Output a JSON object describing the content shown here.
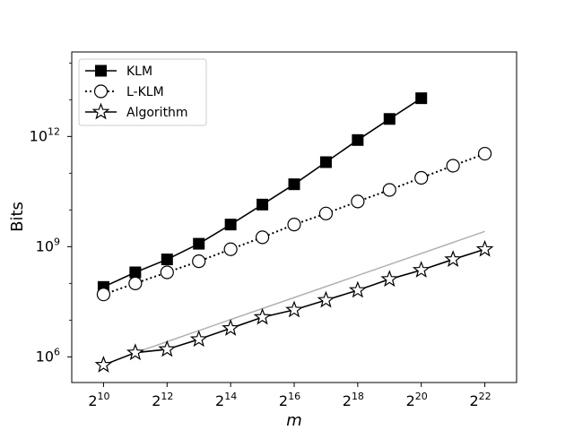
{
  "chart_data": {
    "type": "line",
    "title": "",
    "xlabel": "m",
    "ylabel": "Bits",
    "x_scale": "log2",
    "y_scale": "log10",
    "xlim": [
      512,
      8388608
    ],
    "ylim": [
      200000,
      200000000000000
    ],
    "x_ticks": [
      {
        "value": 1024,
        "base": "2",
        "exp": "10"
      },
      {
        "value": 4096,
        "base": "2",
        "exp": "12"
      },
      {
        "value": 16384,
        "base": "2",
        "exp": "14"
      },
      {
        "value": 65536,
        "base": "2",
        "exp": "16"
      },
      {
        "value": 262144,
        "base": "2",
        "exp": "18"
      },
      {
        "value": 1048576,
        "base": "2",
        "exp": "20"
      },
      {
        "value": 4194304,
        "base": "2",
        "exp": "22"
      }
    ],
    "y_ticks": [
      {
        "value": 1000000,
        "base": "10",
        "exp": "6"
      },
      {
        "value": 1000000000,
        "base": "10",
        "exp": "9"
      },
      {
        "value": 1000000000000,
        "base": "10",
        "exp": "12"
      }
    ],
    "grid": false,
    "legend_position": "top-left",
    "series": [
      {
        "name": "KLM",
        "marker": "square",
        "line": "solid",
        "color": "#000000",
        "x": [
          1024,
          2048,
          4096,
          8192,
          16384,
          32768,
          65536,
          131072,
          262144,
          524288,
          1048576
        ],
        "y": [
          80000000,
          200000000,
          450000000,
          1200000000,
          4000000000,
          14000000000,
          50000000000,
          200000000000,
          800000000000,
          3000000000000,
          11000000000000
        ]
      },
      {
        "name": "L-KLM",
        "marker": "circle-open",
        "line": "dotted",
        "color": "#000000",
        "x": [
          1024,
          2048,
          4096,
          8192,
          16384,
          32768,
          65536,
          131072,
          262144,
          524288,
          1048576,
          2097152,
          4194304
        ],
        "y": [
          50000000,
          100000000,
          200000000,
          400000000,
          850000000,
          1800000000,
          4000000000,
          8000000000,
          17000000000,
          35000000000,
          75000000000,
          160000000000,
          340000000000
        ]
      },
      {
        "name": "Algorithm",
        "marker": "star-open",
        "line": "solid",
        "color": "#000000",
        "x": [
          1024,
          2048,
          4096,
          8192,
          16384,
          32768,
          65536,
          131072,
          262144,
          524288,
          1048576,
          2097152,
          4194304
        ],
        "y": [
          600000,
          1300000,
          1600000,
          3000000,
          6000000,
          12000000,
          19000000,
          35000000,
          65000000,
          130000000,
          230000000,
          450000000,
          850000000
        ]
      },
      {
        "name": "",
        "marker": "none",
        "line": "solid",
        "color": "#b0b0b0",
        "x": [
          2048,
          4194304
        ],
        "y": [
          1300000,
          2600000000
        ]
      }
    ]
  }
}
